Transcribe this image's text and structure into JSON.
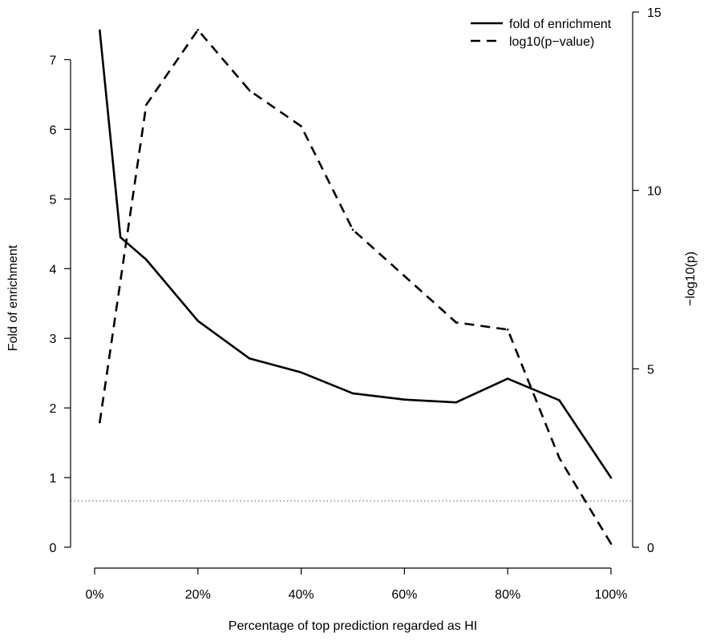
{
  "chart_data": {
    "type": "line",
    "xlabel": "Percentage of top prediction regarded as HI",
    "ylabel_left": "Fold of enrichment",
    "ylabel_right": "−log10(p)",
    "x_ticks": [
      {
        "value": 0,
        "label": "0%"
      },
      {
        "value": 20,
        "label": "20%"
      },
      {
        "value": 40,
        "label": "40%"
      },
      {
        "value": 60,
        "label": "60%"
      },
      {
        "value": 80,
        "label": "80%"
      },
      {
        "value": 100,
        "label": "100%"
      }
    ],
    "y_left_ticks": [
      {
        "value": 0,
        "label": "0"
      },
      {
        "value": 1,
        "label": "1"
      },
      {
        "value": 2,
        "label": "2"
      },
      {
        "value": 3,
        "label": "3"
      },
      {
        "value": 4,
        "label": "4"
      },
      {
        "value": 5,
        "label": "5"
      },
      {
        "value": 6,
        "label": "6"
      },
      {
        "value": 7,
        "label": "7"
      }
    ],
    "y_right_ticks": [
      {
        "value": 0,
        "label": "0"
      },
      {
        "value": 5,
        "label": "5"
      },
      {
        "value": 10,
        "label": "10"
      },
      {
        "value": 15,
        "label": "15"
      }
    ],
    "xlim": [
      0,
      100
    ],
    "ylim_left": [
      0,
      7.5
    ],
    "ylim_right": [
      0,
      15
    ],
    "grid": false,
    "legend_position": "top-right",
    "reference_line": {
      "axis": "right",
      "value": 1.3
    },
    "series": [
      {
        "name": "fold of enrichment",
        "axis": "left",
        "style": "solid",
        "x": [
          1,
          5,
          10,
          20,
          30,
          40,
          50,
          60,
          70,
          80,
          90,
          100
        ],
        "y": [
          7.42,
          4.45,
          4.13,
          3.25,
          2.71,
          2.51,
          2.21,
          2.12,
          2.08,
          2.42,
          2.11,
          1.0
        ]
      },
      {
        "name": "log10(p−value)",
        "axis": "right",
        "style": "dashed",
        "x": [
          1,
          10,
          20,
          30,
          40,
          50,
          60,
          70,
          80,
          90,
          100
        ],
        "y": [
          3.5,
          12.4,
          14.5,
          12.8,
          11.8,
          8.9,
          7.6,
          6.3,
          6.1,
          2.5,
          0.1
        ]
      }
    ]
  }
}
